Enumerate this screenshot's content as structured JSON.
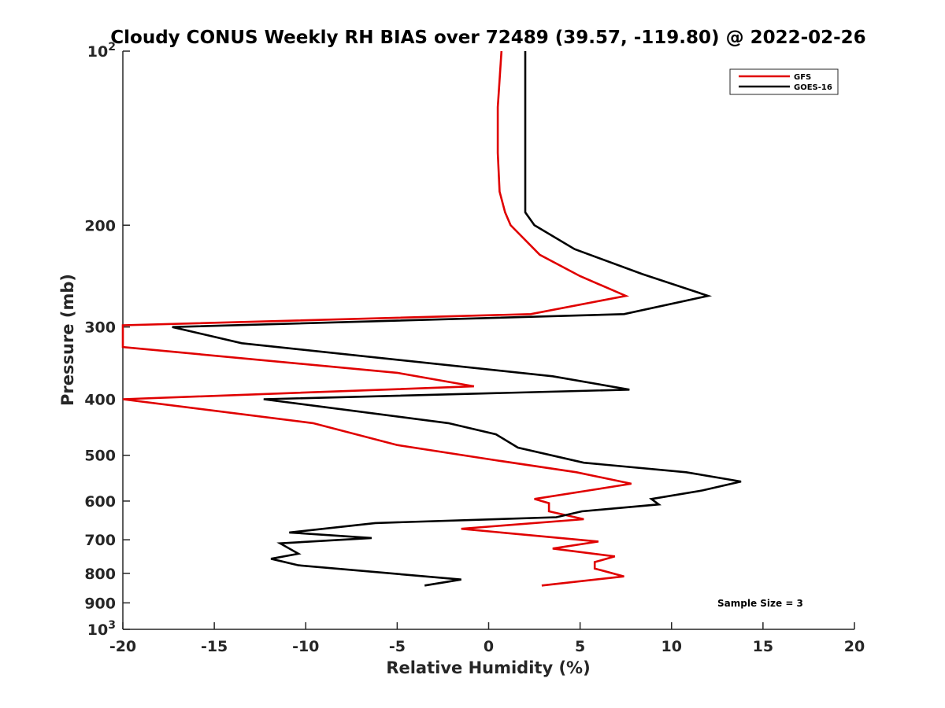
{
  "chart_data": {
    "type": "line",
    "title": "Cloudy CONUS Weekly RH BIAS over 72489 (39.57, -119.80) @ 2022-02-26",
    "xlabel": "Relative Humidity (%)",
    "ylabel": "Pressure (mb)",
    "xlim": [
      -20,
      20
    ],
    "ylim": [
      100,
      1000
    ],
    "yscale": "log",
    "y_reversed": true,
    "grid": false,
    "legend_location": "top-right",
    "x_ticks": [
      "-20",
      "-15",
      "-10",
      "-5",
      "0",
      "5",
      "10",
      "15",
      "20"
    ],
    "y_ticks": [
      {
        "value": 100,
        "base": "10",
        "exp": "2"
      },
      {
        "value": 200,
        "label": "200"
      },
      {
        "value": 300,
        "label": "300"
      },
      {
        "value": 400,
        "label": "400"
      },
      {
        "value": 500,
        "label": "500"
      },
      {
        "value": 600,
        "label": "600"
      },
      {
        "value": 700,
        "label": "700"
      },
      {
        "value": 800,
        "label": "800"
      },
      {
        "value": 900,
        "label": "900"
      },
      {
        "value": 1000,
        "base": "10",
        "exp": "3"
      }
    ],
    "annotation": "Sample Size = 3",
    "series": [
      {
        "name": "GFS",
        "color": "#e00000",
        "points": [
          [
            0.7,
            100
          ],
          [
            0.5,
            125
          ],
          [
            0.5,
            150
          ],
          [
            0.6,
            175
          ],
          [
            0.9,
            190
          ],
          [
            1.2,
            200
          ],
          [
            2.8,
            225
          ],
          [
            5.0,
            245
          ],
          [
            7.5,
            265
          ],
          [
            2.3,
            285
          ],
          [
            -20,
            298
          ],
          [
            -20,
            325
          ],
          [
            -5.0,
            360
          ],
          [
            -0.8,
            380
          ],
          [
            -20,
            400
          ],
          [
            -9.6,
            440
          ],
          [
            -5.0,
            480
          ],
          [
            0.4,
            510
          ],
          [
            4.8,
            535
          ],
          [
            7.8,
            560
          ],
          [
            5.5,
            575
          ],
          [
            2.5,
            595
          ],
          [
            3.3,
            605
          ],
          [
            3.3,
            625
          ],
          [
            5.2,
            645
          ],
          [
            -1.5,
            670
          ],
          [
            6.0,
            705
          ],
          [
            3.5,
            725
          ],
          [
            6.9,
            748
          ],
          [
            5.8,
            765
          ],
          [
            5.8,
            785
          ],
          [
            7.4,
            810
          ],
          [
            2.9,
            840
          ]
        ]
      },
      {
        "name": "GOES-16",
        "color": "#000000",
        "points": [
          [
            2.0,
            100
          ],
          [
            2.0,
            125
          ],
          [
            2.0,
            150
          ],
          [
            2.0,
            175
          ],
          [
            2.0,
            190
          ],
          [
            2.5,
            200
          ],
          [
            4.7,
            220
          ],
          [
            8.4,
            243
          ],
          [
            12.0,
            265
          ],
          [
            7.4,
            285
          ],
          [
            -17.3,
            300
          ],
          [
            -13.5,
            320
          ],
          [
            3.5,
            365
          ],
          [
            7.7,
            385
          ],
          [
            -12.3,
            400
          ],
          [
            -2.2,
            440
          ],
          [
            0.4,
            460
          ],
          [
            1.6,
            485
          ],
          [
            5.2,
            515
          ],
          [
            10.8,
            535
          ],
          [
            13.8,
            555
          ],
          [
            11.7,
            575
          ],
          [
            8.9,
            595
          ],
          [
            9.3,
            608
          ],
          [
            5.1,
            625
          ],
          [
            3.7,
            640
          ],
          [
            -6.2,
            655
          ],
          [
            -10.9,
            680
          ],
          [
            -6.4,
            695
          ],
          [
            -11.4,
            710
          ],
          [
            -10.4,
            740
          ],
          [
            -11.9,
            755
          ],
          [
            -10.4,
            775
          ],
          [
            -1.5,
            820
          ],
          [
            -3.5,
            840
          ]
        ]
      }
    ]
  }
}
